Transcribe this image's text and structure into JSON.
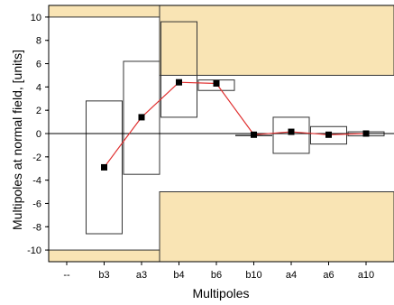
{
  "chart_data": {
    "type": "line",
    "title": "",
    "xlabel": "Multipoles",
    "ylabel": "Multipoles at normal field, [units]",
    "ylim": [
      -11,
      11
    ],
    "yticks": [
      10,
      8,
      6,
      4,
      2,
      0,
      -2,
      -4,
      -6,
      -8,
      -10
    ],
    "categories": [
      "--",
      "b3",
      "a3",
      "b4",
      "b6",
      "b10",
      "a4",
      "a6",
      "a10",
      ""
    ],
    "grid": false,
    "series": [
      {
        "marker": "square",
        "line_color": "#e03030",
        "marker_color": "#000000",
        "values": [
          null,
          -2.9,
          1.4,
          4.4,
          4.3,
          -0.1,
          0.15,
          -0.1,
          0.0,
          null
        ]
      }
    ],
    "boxes": [
      {
        "category": "b3",
        "low": -8.6,
        "high": 2.8
      },
      {
        "category": "a3",
        "low": -3.5,
        "high": 6.2
      },
      {
        "category": "b4",
        "low": 1.4,
        "high": 9.6
      },
      {
        "category": "b6",
        "low": 3.7,
        "high": 4.6
      },
      {
        "category": "b10",
        "low": -0.15,
        "high": -0.15
      },
      {
        "category": "a4",
        "low": -1.7,
        "high": 1.4
      },
      {
        "category": "a6",
        "low": -0.9,
        "high": 0.6
      },
      {
        "category": "a10",
        "low": -0.2,
        "high": 0.15
      }
    ],
    "tolerance_bands": [
      {
        "from": "--",
        "to": "a3",
        "low": 10,
        "high": 11
      },
      {
        "from": "a3",
        "to": "",
        "low": 5,
        "high": 11
      },
      {
        "from": "--",
        "to": "a3",
        "low": -11,
        "high": -10
      },
      {
        "from": "a3",
        "to": "",
        "low": -11,
        "high": -5
      }
    ],
    "colors": {
      "band_fill": "#f9e4b4",
      "box_stroke": "#333333",
      "axis": "#000000"
    }
  }
}
